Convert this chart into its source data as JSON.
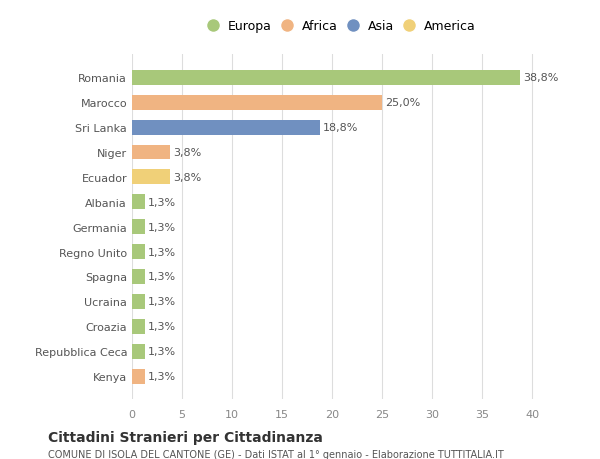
{
  "countries": [
    "Romania",
    "Marocco",
    "Sri Lanka",
    "Niger",
    "Ecuador",
    "Albania",
    "Germania",
    "Regno Unito",
    "Spagna",
    "Ucraina",
    "Croazia",
    "Repubblica Ceca",
    "Kenya"
  ],
  "values": [
    38.8,
    25.0,
    18.8,
    3.8,
    3.8,
    1.3,
    1.3,
    1.3,
    1.3,
    1.3,
    1.3,
    1.3,
    1.3
  ],
  "labels": [
    "38,8%",
    "25,0%",
    "18,8%",
    "3,8%",
    "3,8%",
    "1,3%",
    "1,3%",
    "1,3%",
    "1,3%",
    "1,3%",
    "1,3%",
    "1,3%",
    "1,3%"
  ],
  "continents": [
    "Europa",
    "Africa",
    "Asia",
    "Africa",
    "America",
    "Europa",
    "Europa",
    "Europa",
    "Europa",
    "Europa",
    "Europa",
    "Europa",
    "Africa"
  ],
  "colors": {
    "Europa": "#a8c87a",
    "Africa": "#f0b482",
    "Asia": "#7090c0",
    "America": "#f0d078"
  },
  "legend_order": [
    "Europa",
    "Africa",
    "Asia",
    "America"
  ],
  "title": "Cittadini Stranieri per Cittadinanza",
  "subtitle": "COMUNE DI ISOLA DEL CANTONE (GE) - Dati ISTAT al 1° gennaio - Elaborazione TUTTITALIA.IT",
  "xlim": [
    0,
    42
  ],
  "xticks": [
    0,
    5,
    10,
    15,
    20,
    25,
    30,
    35,
    40
  ],
  "background_color": "#ffffff",
  "grid_color": "#dddddd"
}
